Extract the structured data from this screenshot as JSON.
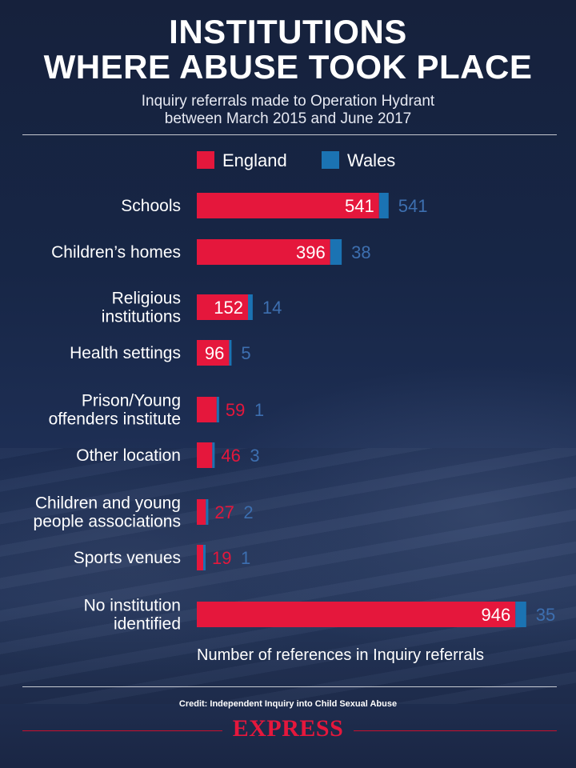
{
  "title_lines": [
    "INSTITUTIONS",
    "WHERE ABUSE TOOK PLACE"
  ],
  "subtitle_lines": [
    "Inquiry referrals made to Operation Hydrant",
    "between March 2015 and June 2017"
  ],
  "credit": "Credit: Independent Inquiry into Child Sexual Abuse",
  "brand": "EXPRESS",
  "colors": {
    "england": "#e5173c",
    "wales": "#1b73b3",
    "wales_label": "#3d6fb0"
  },
  "chart_data": {
    "type": "bar",
    "orientation": "horizontal",
    "stacked": true,
    "xlabel": "Number of references in Inquiry referrals",
    "ylabel": "",
    "legend": {
      "placement": "top",
      "entries": [
        "England",
        "Wales"
      ]
    },
    "grid": false,
    "categories": [
      [
        "Schools"
      ],
      [
        "Children’s homes"
      ],
      [
        "Religious",
        "institutions"
      ],
      [
        "Health settings"
      ],
      [
        "Prison/Young",
        "offenders institute"
      ],
      [
        "Other location"
      ],
      [
        "Children and young",
        "people associations"
      ],
      [
        "Sports venues"
      ],
      [
        "No institution",
        "identified"
      ]
    ],
    "series": [
      {
        "name": "England",
        "values": [
          541,
          396,
          152,
          96,
          59,
          46,
          27,
          19,
          946
        ]
      },
      {
        "name": "Wales",
        "values": [
          541,
          38,
          14,
          5,
          1,
          3,
          2,
          1,
          35
        ]
      }
    ]
  }
}
